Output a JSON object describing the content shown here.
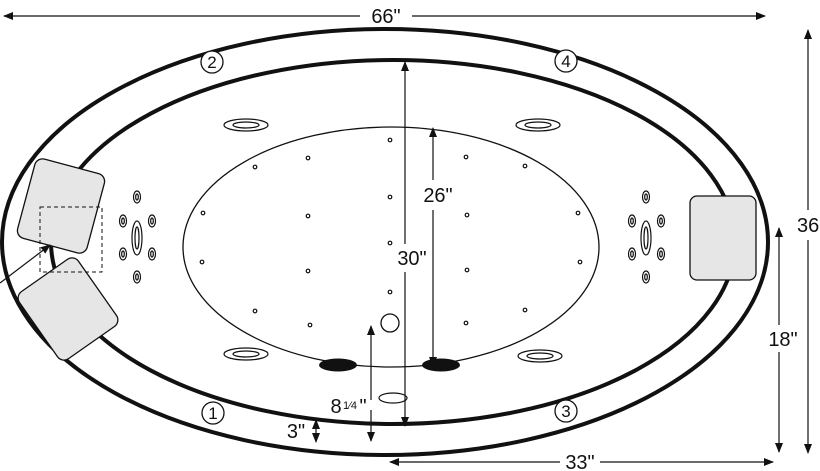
{
  "dimensions": {
    "overall_length": "66\"",
    "overall_width": "36",
    "interior_length": "30\"",
    "interior_width": "26\"",
    "half_length": "33\"",
    "center_height": "18\"",
    "rim_width": "3\"",
    "drain_offset_prefix": "8",
    "drain_offset_fraction": "1⁄4",
    "drain_offset_suffix": "\""
  },
  "jet_positions": {
    "one": "1",
    "two": "2",
    "three": "3",
    "four": "4"
  },
  "colors": {
    "line": "#111111",
    "pillow_fill": "#e6e6e6",
    "background": "#ffffff"
  }
}
